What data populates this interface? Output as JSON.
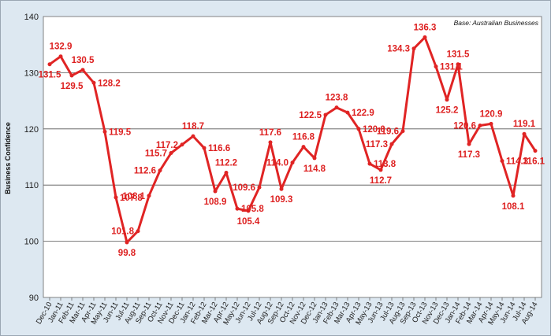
{
  "chart_data": {
    "type": "line",
    "title": "",
    "ylabel": "Business Confidence",
    "xlabel": "",
    "annotation": "Base: Australian Businesses",
    "ylim": [
      90,
      140
    ],
    "yticks": [
      "90",
      "100",
      "110",
      "120",
      "130",
      "140"
    ],
    "grid": "horizontal",
    "colors": {
      "line": "#e02424",
      "label": "#dd2020",
      "plot_bg": "#ffffff",
      "grid": "#555555"
    },
    "categories": [
      "Dec-10",
      "Jan-11",
      "Feb-11",
      "Mar-11",
      "Apr-11",
      "May-11",
      "Jun-11",
      "Jul-11",
      "Aug-11",
      "Sep-11",
      "Oct-11",
      "Nov-11",
      "Dec-11",
      "Jan-12",
      "Feb-12",
      "Mar-12",
      "Apr-12",
      "May-12",
      "Jun-12",
      "Jul-12",
      "Aug-12",
      "Sep-12",
      "Oct-12",
      "Nov-12",
      "Dec-12",
      "Jan-13",
      "Feb-13",
      "Mar-13",
      "Apr-13",
      "May-13",
      "Jun-13",
      "Jul-13",
      "Aug-13",
      "Sep-13",
      "Oct-13",
      "Nov-13",
      "Dec-13",
      "Jan-14",
      "Feb-14",
      "Mar-14",
      "Apr-14",
      "May-14",
      "Jun-14",
      "Jul-14",
      "Aug-14"
    ],
    "series": [
      {
        "values": [
          131.5,
          132.9,
          129.5,
          130.5,
          128.2,
          119.5,
          107.8,
          99.8,
          101.8,
          108.1,
          112.6,
          115.7,
          117.2,
          118.7,
          116.6,
          108.9,
          112.2,
          105.8,
          105.4,
          109.6,
          117.6,
          109.3,
          114.0,
          116.8,
          114.8,
          122.5,
          123.8,
          122.9,
          120.0,
          113.8,
          112.7,
          117.3,
          119.6,
          134.3,
          136.3,
          131.1,
          125.2,
          131.5,
          117.3,
          120.6,
          120.9,
          114.3,
          108.1,
          119.1,
          116.1
        ],
        "labels": [
          "131.5",
          "132.9",
          "129.5",
          "130.5",
          "128.2",
          "119.5",
          "107.8",
          "99.8",
          "101.8",
          "108.1",
          "112.6",
          "115.7",
          "117.2",
          "118.7",
          "116.6",
          "108.9",
          "112.2",
          "105.8",
          "105.4",
          "109.6",
          "117.6",
          "109.3",
          "114.0",
          "116.8",
          "114.8",
          "122.5",
          "123.8",
          "122.9",
          "120.0",
          "113.8",
          "112.7",
          "117.3",
          "119.6",
          "134.3",
          "136.3",
          "131.1",
          "125.2",
          "131.5",
          "117.3",
          "120.6",
          "120.9",
          "114.3",
          "108.1",
          "119.1",
          "116.1"
        ]
      }
    ]
  }
}
